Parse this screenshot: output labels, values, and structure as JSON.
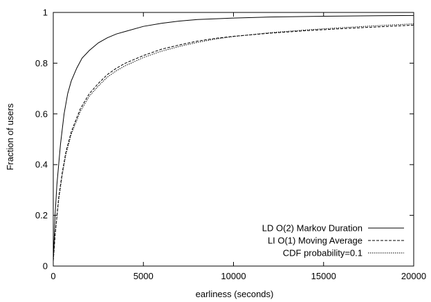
{
  "chart_data": {
    "type": "line",
    "title": "",
    "xlabel": "earliness (seconds)",
    "ylabel": "Fraction of users",
    "xlim": [
      0,
      20000
    ],
    "ylim": [
      0,
      1
    ],
    "xticks": [
      0,
      5000,
      10000,
      15000,
      20000
    ],
    "yticks": [
      0,
      0.2,
      0.4,
      0.6,
      0.8,
      1
    ],
    "xtick_labels": [
      "0",
      "5000",
      "10000",
      "15000",
      "20000"
    ],
    "ytick_labels": [
      "0",
      "0.2",
      "0.4",
      "0.6",
      "0.8",
      "1"
    ],
    "grid": false,
    "legend_position": "bottom-right",
    "series": [
      {
        "name": "LD O(2) Markov Duration",
        "style": "solid",
        "color": "#000000",
        "x": [
          0,
          100,
          200,
          400,
          600,
          800,
          1000,
          1300,
          1600,
          2000,
          2500,
          3000,
          3500,
          4000,
          5000,
          6000,
          7000,
          8000,
          10000,
          12000,
          15000,
          18000,
          20000
        ],
        "y": [
          0.02,
          0.2,
          0.32,
          0.48,
          0.6,
          0.68,
          0.73,
          0.78,
          0.82,
          0.85,
          0.88,
          0.9,
          0.915,
          0.925,
          0.945,
          0.957,
          0.966,
          0.972,
          0.978,
          0.982,
          0.985,
          0.987,
          0.988
        ]
      },
      {
        "name": "LI O(1) Moving Average",
        "style": "dashed",
        "color": "#000000",
        "x": [
          0,
          100,
          300,
          500,
          700,
          1000,
          1500,
          2000,
          2500,
          3000,
          3500,
          4000,
          5000,
          6000,
          7000,
          8000,
          9000,
          10000,
          12000,
          14000,
          16000,
          18000,
          20000
        ],
        "y": [
          0.02,
          0.12,
          0.27,
          0.37,
          0.45,
          0.53,
          0.62,
          0.68,
          0.72,
          0.755,
          0.78,
          0.8,
          0.83,
          0.855,
          0.872,
          0.887,
          0.898,
          0.906,
          0.918,
          0.928,
          0.936,
          0.943,
          0.95
        ]
      },
      {
        "name": "CDF probability=0.1",
        "style": "dotted",
        "color": "#000000",
        "x": [
          0,
          100,
          300,
          500,
          700,
          1000,
          1500,
          2000,
          2500,
          3000,
          3500,
          4000,
          5000,
          6000,
          7000,
          8000,
          9000,
          10000,
          12000,
          14000,
          16000,
          18000,
          20000
        ],
        "y": [
          0.02,
          0.12,
          0.26,
          0.36,
          0.44,
          0.52,
          0.61,
          0.67,
          0.71,
          0.745,
          0.77,
          0.79,
          0.822,
          0.847,
          0.866,
          0.882,
          0.895,
          0.905,
          0.92,
          0.931,
          0.94,
          0.948,
          0.955
        ]
      }
    ]
  }
}
